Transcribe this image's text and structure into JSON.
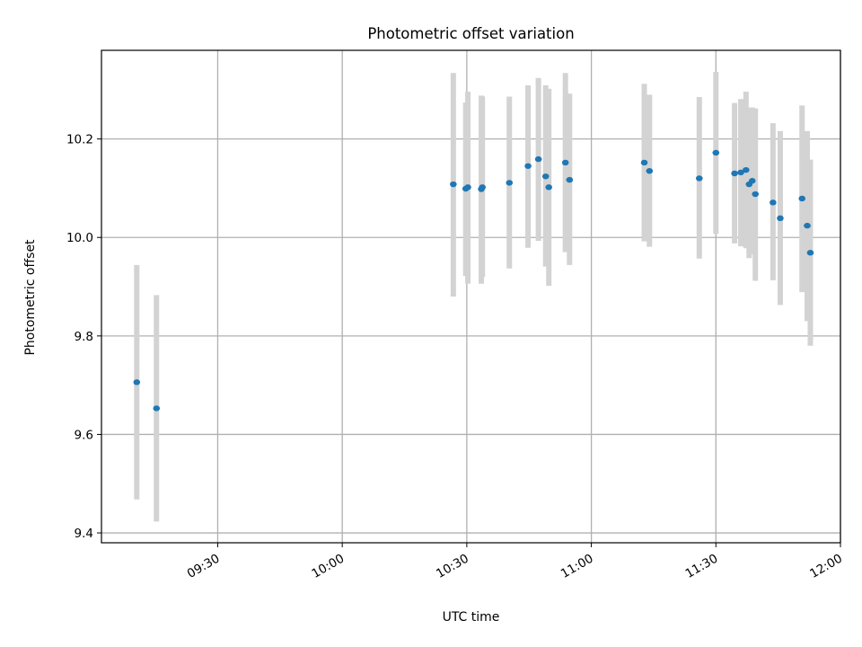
{
  "chart_data": {
    "type": "scatter",
    "title": "Photometric offset variation",
    "xlabel": "UTC time",
    "ylabel": "Photometric offset",
    "x_unit": "UTC time (HH:MM)",
    "xlim": [
      "09:02",
      "12:00"
    ],
    "ylim": [
      9.38,
      10.38
    ],
    "x_ticks": [
      "09:30",
      "10:00",
      "10:30",
      "11:00",
      "11:30",
      "12:00"
    ],
    "y_ticks": [
      "9.4",
      "9.6",
      "9.8",
      "10.0",
      "10.2"
    ],
    "grid": true,
    "colors": {
      "point": "#1f77b4",
      "error_bar": "#d3d3d3",
      "grid": "#b0b0b0"
    },
    "series": [
      {
        "points": [
          {
            "x": "09:10:30",
            "y": 9.706,
            "err_low": 9.468,
            "err_high": 9.944
          },
          {
            "x": "09:15:15",
            "y": 9.653,
            "err_low": 9.423,
            "err_high": 9.883
          },
          {
            "x": "10:26:45",
            "y": 10.108,
            "err_low": 9.88,
            "err_high": 10.334
          },
          {
            "x": "10:29:45",
            "y": 10.099,
            "err_low": 9.922,
            "err_high": 10.274
          },
          {
            "x": "10:30:15",
            "y": 10.102,
            "err_low": 9.906,
            "err_high": 10.296
          },
          {
            "x": "10:33:30",
            "y": 10.098,
            "err_low": 9.906,
            "err_high": 10.288
          },
          {
            "x": "10:33:45",
            "y": 10.102,
            "err_low": 9.92,
            "err_high": 10.286
          },
          {
            "x": "10:40:15",
            "y": 10.111,
            "err_low": 9.937,
            "err_high": 10.286
          },
          {
            "x": "10:44:45",
            "y": 10.145,
            "err_low": 9.979,
            "err_high": 10.309
          },
          {
            "x": "10:47:15",
            "y": 10.159,
            "err_low": 9.993,
            "err_high": 10.324
          },
          {
            "x": "10:49:00",
            "y": 10.124,
            "err_low": 9.941,
            "err_high": 10.309
          },
          {
            "x": "10:49:45",
            "y": 10.102,
            "err_low": 9.902,
            "err_high": 10.302
          },
          {
            "x": "10:53:45",
            "y": 10.152,
            "err_low": 9.97,
            "err_high": 10.334
          },
          {
            "x": "10:54:45",
            "y": 10.117,
            "err_low": 9.944,
            "err_high": 10.292
          },
          {
            "x": "11:12:45",
            "y": 10.152,
            "err_low": 9.992,
            "err_high": 10.312
          },
          {
            "x": "11:14:00",
            "y": 10.135,
            "err_low": 9.981,
            "err_high": 10.29
          },
          {
            "x": "11:26:00",
            "y": 10.12,
            "err_low": 9.957,
            "err_high": 10.285
          },
          {
            "x": "11:30:00",
            "y": 10.172,
            "err_low": 10.007,
            "err_high": 10.336
          },
          {
            "x": "11:34:30",
            "y": 10.13,
            "err_low": 9.988,
            "err_high": 10.273
          },
          {
            "x": "11:36:00",
            "y": 10.132,
            "err_low": 9.982,
            "err_high": 10.281
          },
          {
            "x": "11:37:15",
            "y": 10.137,
            "err_low": 9.978,
            "err_high": 10.296
          },
          {
            "x": "11:38:00",
            "y": 10.108,
            "err_low": 9.958,
            "err_high": 10.264
          },
          {
            "x": "11:38:45",
            "y": 10.115,
            "err_low": 9.966,
            "err_high": 10.264
          },
          {
            "x": "11:39:30",
            "y": 10.088,
            "err_low": 9.912,
            "err_high": 10.262
          },
          {
            "x": "11:43:45",
            "y": 10.071,
            "err_low": 9.913,
            "err_high": 10.232
          },
          {
            "x": "11:45:30",
            "y": 10.039,
            "err_low": 9.863,
            "err_high": 10.216
          },
          {
            "x": "11:50:45",
            "y": 10.079,
            "err_low": 9.889,
            "err_high": 10.268
          },
          {
            "x": "11:52:00",
            "y": 10.024,
            "err_low": 9.83,
            "err_high": 10.216
          },
          {
            "x": "11:52:45",
            "y": 9.969,
            "err_low": 9.78,
            "err_high": 10.158
          }
        ]
      }
    ]
  }
}
